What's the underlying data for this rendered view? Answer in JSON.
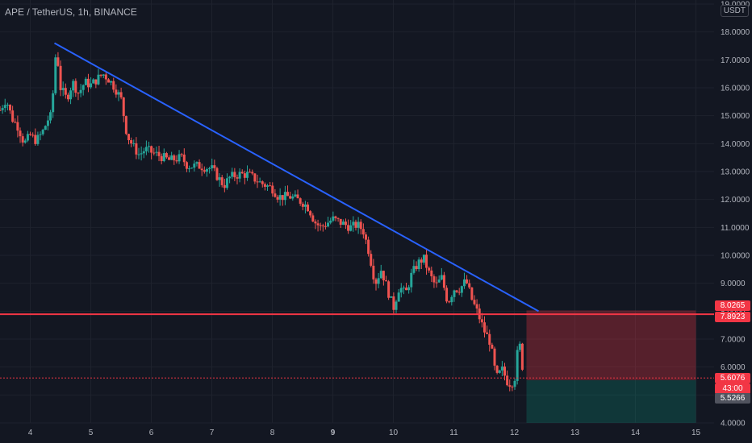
{
  "header": {
    "title": "APE / TetherUS, 1h, BINANCE"
  },
  "axis": {
    "currency": "USDT"
  },
  "colors": {
    "background": "#131722",
    "grid": "#1e222d",
    "up": "#26a69a",
    "down": "#ef5350",
    "trendline": "#2962ff",
    "resistance": "#f23645",
    "stop_zone": "rgba(242,54,69,0.30)",
    "target_zone": "rgba(8,153,129,0.25)"
  },
  "chart_data": {
    "type": "candlestick",
    "title": "APE / TetherUS, 1h, BINANCE",
    "x_ticks": [
      "4",
      "5",
      "6",
      "7",
      "8",
      "9",
      "10",
      "11",
      "12",
      "13",
      "14",
      "15"
    ],
    "x_range": [
      3.5,
      15.3
    ],
    "ylim": [
      4.0,
      19.0
    ],
    "y_ticks": [
      "4.0000",
      "5.0000",
      "6.0000",
      "7.0000",
      "8.0000",
      "9.0000",
      "10.0000",
      "11.0000",
      "12.0000",
      "13.0000",
      "14.0000",
      "15.0000",
      "16.0000",
      "17.0000",
      "18.0000",
      "19.0000"
    ],
    "price_path": [
      [
        3.5,
        15.2
      ],
      [
        3.6,
        15.6
      ],
      [
        3.7,
        14.9
      ],
      [
        3.8,
        14.6
      ],
      [
        3.9,
        14.0
      ],
      [
        4.0,
        14.3
      ],
      [
        4.1,
        14.1
      ],
      [
        4.2,
        14.4
      ],
      [
        4.3,
        14.9
      ],
      [
        4.35,
        15.0
      ],
      [
        4.43,
        17.5
      ],
      [
        4.5,
        16.0
      ],
      [
        4.6,
        15.6
      ],
      [
        4.7,
        16.2
      ],
      [
        4.8,
        15.8
      ],
      [
        4.9,
        16.2
      ],
      [
        5.0,
        16.1
      ],
      [
        5.1,
        16.3
      ],
      [
        5.2,
        16.5
      ],
      [
        5.3,
        16.3
      ],
      [
        5.4,
        16.0
      ],
      [
        5.5,
        15.6
      ],
      [
        5.6,
        14.3
      ],
      [
        5.7,
        13.9
      ],
      [
        5.8,
        13.6
      ],
      [
        5.9,
        13.8
      ],
      [
        6.0,
        13.7
      ],
      [
        6.2,
        13.5
      ],
      [
        6.3,
        13.4
      ],
      [
        6.5,
        13.5
      ],
      [
        6.6,
        13.2
      ],
      [
        6.8,
        13.2
      ],
      [
        7.0,
        13.1
      ],
      [
        7.1,
        12.8
      ],
      [
        7.2,
        12.5
      ],
      [
        7.3,
        12.8
      ],
      [
        7.45,
        12.9
      ],
      [
        7.6,
        12.9
      ],
      [
        7.8,
        12.6
      ],
      [
        8.0,
        12.4
      ],
      [
        8.1,
        12.1
      ],
      [
        8.3,
        12.1
      ],
      [
        8.4,
        12.0
      ],
      [
        8.5,
        11.9
      ],
      [
        8.6,
        11.7
      ],
      [
        8.7,
        11.2
      ],
      [
        8.8,
        11.0
      ],
      [
        9.0,
        11.3
      ],
      [
        9.1,
        11.2
      ],
      [
        9.3,
        11.0
      ],
      [
        9.4,
        11.1
      ],
      [
        9.5,
        10.9
      ],
      [
        9.6,
        10.1
      ],
      [
        9.7,
        9.0
      ],
      [
        9.8,
        9.5
      ],
      [
        9.9,
        8.8
      ],
      [
        10.0,
        8.1
      ],
      [
        10.1,
        8.9
      ],
      [
        10.2,
        8.6
      ],
      [
        10.3,
        9.3
      ],
      [
        10.4,
        9.7
      ],
      [
        10.5,
        9.9
      ],
      [
        10.6,
        9.3
      ],
      [
        10.7,
        8.9
      ],
      [
        10.8,
        9.2
      ],
      [
        10.9,
        8.3
      ],
      [
        11.0,
        8.8
      ],
      [
        11.1,
        8.8
      ],
      [
        11.2,
        9.1
      ],
      [
        11.3,
        8.4
      ],
      [
        11.4,
        7.9
      ],
      [
        11.5,
        7.3
      ],
      [
        11.6,
        6.9
      ],
      [
        11.7,
        5.6
      ],
      [
        11.8,
        5.9
      ],
      [
        11.9,
        5.4
      ],
      [
        12.0,
        5.5
      ],
      [
        12.05,
        6.5
      ],
      [
        12.1,
        6.8
      ],
      [
        12.15,
        5.6
      ]
    ],
    "trendline": {
      "from": [
        4.4,
        17.6
      ],
      "to": [
        12.4,
        8.0
      ]
    },
    "resistance_line": 7.8923,
    "current_price": 5.6076,
    "entry_line": 5.5266,
    "stop_zone": {
      "x_start": 12.2,
      "x_end": 15.0,
      "top": 8.0265,
      "bottom": 5.5266
    },
    "target_zone": {
      "x_start": 12.2,
      "x_end": 15.0,
      "top": 5.5266,
      "bottom": 4.0
    },
    "price_tags": [
      {
        "label": "8.0265",
        "price": 8.0265,
        "color": "#f23645"
      },
      {
        "label": "7.8923",
        "price": 7.8923,
        "color": "#f23645"
      },
      {
        "label": "5.6076",
        "price": 5.6076,
        "color": "#f23645"
      },
      {
        "label": "43:00",
        "price": 5.6076,
        "color": "#f23645",
        "sub": true
      },
      {
        "label": "5.5266",
        "price": 5.5266,
        "color": "#50535e"
      }
    ]
  }
}
